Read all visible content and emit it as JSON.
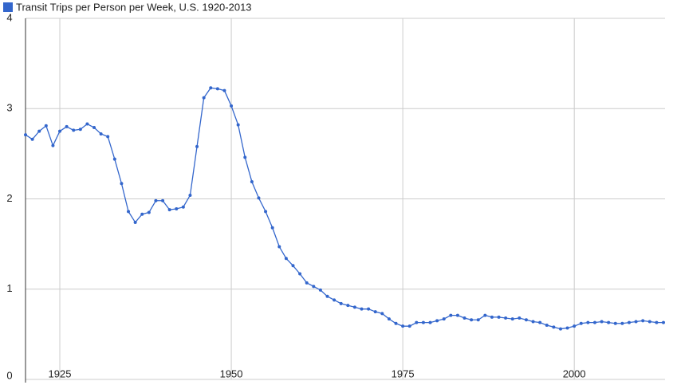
{
  "chart_data": {
    "type": "line",
    "x": [
      1920,
      1921,
      1922,
      1923,
      1924,
      1925,
      1926,
      1927,
      1928,
      1929,
      1930,
      1931,
      1932,
      1933,
      1934,
      1935,
      1936,
      1937,
      1938,
      1939,
      1940,
      1941,
      1942,
      1943,
      1944,
      1945,
      1946,
      1947,
      1948,
      1949,
      1950,
      1951,
      1952,
      1953,
      1954,
      1955,
      1956,
      1957,
      1958,
      1959,
      1960,
      1961,
      1962,
      1963,
      1964,
      1965,
      1966,
      1967,
      1968,
      1969,
      1970,
      1971,
      1972,
      1973,
      1974,
      1975,
      1976,
      1977,
      1978,
      1979,
      1980,
      1981,
      1982,
      1983,
      1984,
      1985,
      1986,
      1987,
      1988,
      1989,
      1990,
      1991,
      1992,
      1993,
      1994,
      1995,
      1996,
      1997,
      1998,
      1999,
      2000,
      2001,
      2002,
      2003,
      2004,
      2005,
      2006,
      2007,
      2008,
      2009,
      2010,
      2011,
      2012,
      2013
    ],
    "series": [
      {
        "name": "Transit Trips per Person per Week, U.S. 1920-2013",
        "color": "#3366cc",
        "values": [
          2.71,
          2.66,
          2.75,
          2.81,
          2.59,
          2.75,
          2.8,
          2.76,
          2.77,
          2.83,
          2.79,
          2.72,
          2.69,
          2.44,
          2.17,
          1.86,
          1.74,
          1.83,
          1.85,
          1.98,
          1.98,
          1.88,
          1.89,
          1.91,
          2.04,
          2.58,
          3.12,
          3.23,
          3.22,
          3.2,
          3.03,
          2.82,
          2.46,
          2.19,
          2.01,
          1.86,
          1.68,
          1.47,
          1.34,
          1.26,
          1.17,
          1.07,
          1.03,
          0.99,
          0.92,
          0.88,
          0.84,
          0.82,
          0.8,
          0.78,
          0.78,
          0.75,
          0.73,
          0.67,
          0.62,
          0.59,
          0.59,
          0.63,
          0.63,
          0.63,
          0.65,
          0.67,
          0.71,
          0.71,
          0.68,
          0.66,
          0.66,
          0.71,
          0.69,
          0.69,
          0.68,
          0.67,
          0.68,
          0.66,
          0.64,
          0.63,
          0.6,
          0.58,
          0.56,
          0.57,
          0.59,
          0.62,
          0.63,
          0.63,
          0.64,
          0.63,
          0.62,
          0.62,
          0.63,
          0.64,
          0.65,
          0.64,
          0.63,
          0.63
        ]
      }
    ],
    "xlim": [
      1920,
      2013
    ],
    "xticks": [
      1925,
      1950,
      1975,
      2000
    ],
    "ylim": [
      0,
      4
    ],
    "yticks": [
      0,
      1,
      2,
      3,
      4
    ],
    "grid": true,
    "legend": "top-left"
  }
}
